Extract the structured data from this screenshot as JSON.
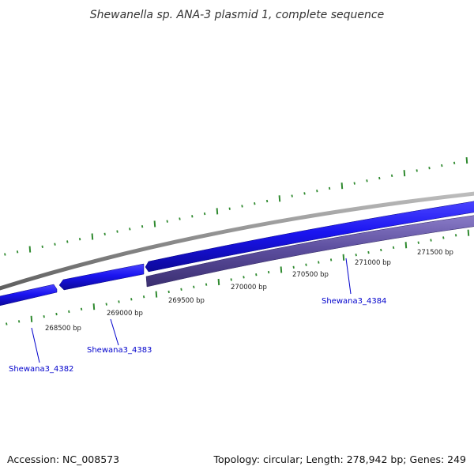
{
  "title": "Shewanella sp. ANA-3 plasmid 1, complete sequence",
  "footer": {
    "accession": "Accession: NC_008573",
    "summary": "Topology: circular; Length: 278,942 bp; Genes: 249"
  },
  "colors": {
    "backbone": "#8a8a8a",
    "forward_gene": "#1a14f0",
    "reverse_gene": "#5a4c9c",
    "tick": "#2f8a2f",
    "gene_label": "#0000cc"
  },
  "bp_labels": [
    "268500 bp",
    "269000 bp",
    "269500 bp",
    "270000 bp",
    "270500 bp",
    "271000 bp",
    "271500 bp"
  ],
  "gene_labels": [
    "Shewana3_4382",
    "Shewana3_4383",
    "Shewana3_4384"
  ]
}
